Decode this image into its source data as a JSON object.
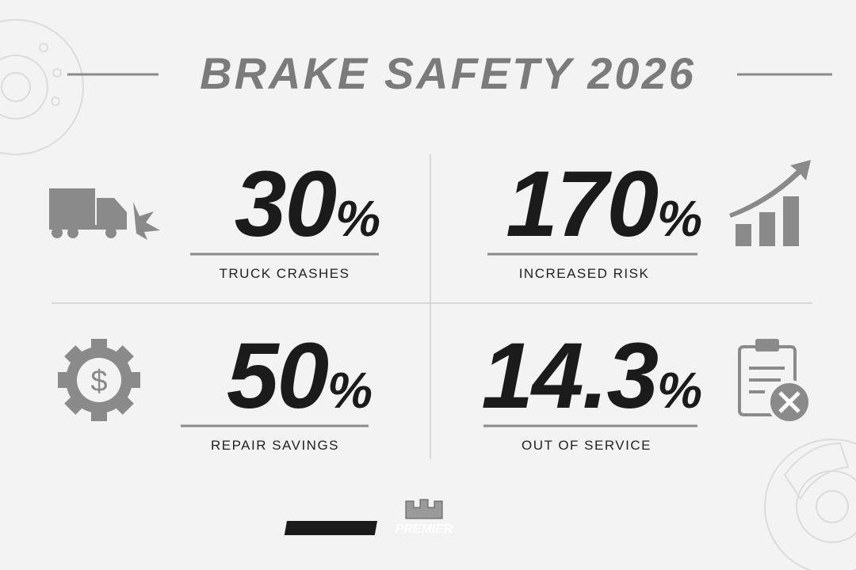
{
  "header": {
    "title": "BRAKE SAFETY 2026"
  },
  "stats": [
    {
      "value": "30",
      "unit": "%",
      "label": "TRUCK CRASHES"
    },
    {
      "value": "170",
      "unit": "%",
      "label": "INCREASED RISK"
    },
    {
      "value": "50",
      "unit": "%",
      "label": "REPAIR SAVINGS"
    },
    {
      "value": "14.3",
      "unit": "%",
      "label": "OUT OF SERVICE"
    }
  ],
  "footer": {
    "logo": "PREMIER"
  }
}
